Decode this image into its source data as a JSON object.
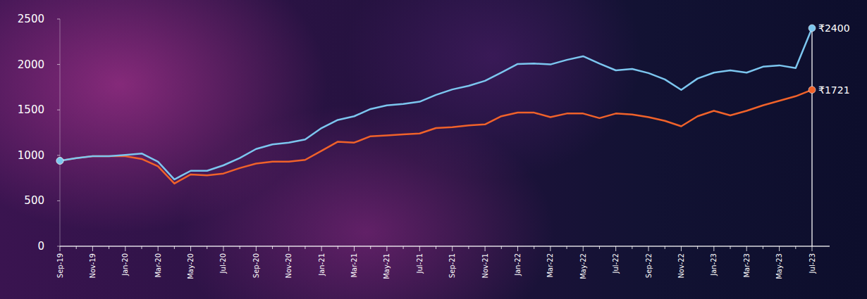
{
  "chart_data": {
    "type": "line",
    "categories": [
      "Sep-19",
      null,
      "Nov-19",
      null,
      "Jan-20",
      null,
      "Mar-20",
      null,
      "May-20",
      null,
      "Jul-20",
      null,
      "Sep-20",
      null,
      "Nov-20",
      null,
      "Jan-21",
      null,
      "Mar-21",
      null,
      "May-21",
      null,
      "Jul-21",
      null,
      "Sep-21",
      null,
      "Nov-21",
      null,
      "Jan-22",
      null,
      "Mar-22",
      null,
      "May-22",
      null,
      "Jul-22",
      null,
      "Sep-22",
      null,
      "Nov-22",
      null,
      "Jan-23",
      null,
      "Mar-23",
      null,
      "May-23",
      null,
      "Jul-23"
    ],
    "series": [
      {
        "color": "#7cc6ef",
        "marker": "endpoints",
        "values": [
          940,
          970,
          990,
          990,
          1005,
          1020,
          930,
          735,
          830,
          830,
          890,
          970,
          1070,
          1120,
          1140,
          1175,
          1300,
          1390,
          1430,
          1510,
          1550,
          1565,
          1590,
          1665,
          1725,
          1765,
          1820,
          1910,
          2005,
          2010,
          2000,
          2050,
          2090,
          2010,
          1935,
          1950,
          1905,
          1835,
          1720,
          1845,
          1910,
          1935,
          1910,
          1975,
          1990,
          1960,
          2400
        ]
      },
      {
        "color": "#f0622a",
        "marker": "endpoints",
        "values": [
          940,
          970,
          990,
          990,
          990,
          960,
          880,
          690,
          790,
          780,
          800,
          860,
          910,
          930,
          930,
          950,
          1050,
          1150,
          1140,
          1210,
          1220,
          1230,
          1240,
          1300,
          1310,
          1330,
          1340,
          1430,
          1470,
          1470,
          1420,
          1460,
          1460,
          1410,
          1460,
          1450,
          1420,
          1380,
          1320,
          1430,
          1490,
          1440,
          1490,
          1550,
          1600,
          1650,
          1721
        ]
      }
    ],
    "annotations": [
      {
        "text": "₹2400",
        "x": "Jul-23",
        "y": 2400
      },
      {
        "text": "₹1721",
        "x": "Jul-23",
        "y": 1721
      }
    ],
    "ylim": [
      0,
      2500
    ],
    "yticks": [
      0,
      500,
      1000,
      1500,
      2000,
      2500
    ],
    "grid": false
  }
}
